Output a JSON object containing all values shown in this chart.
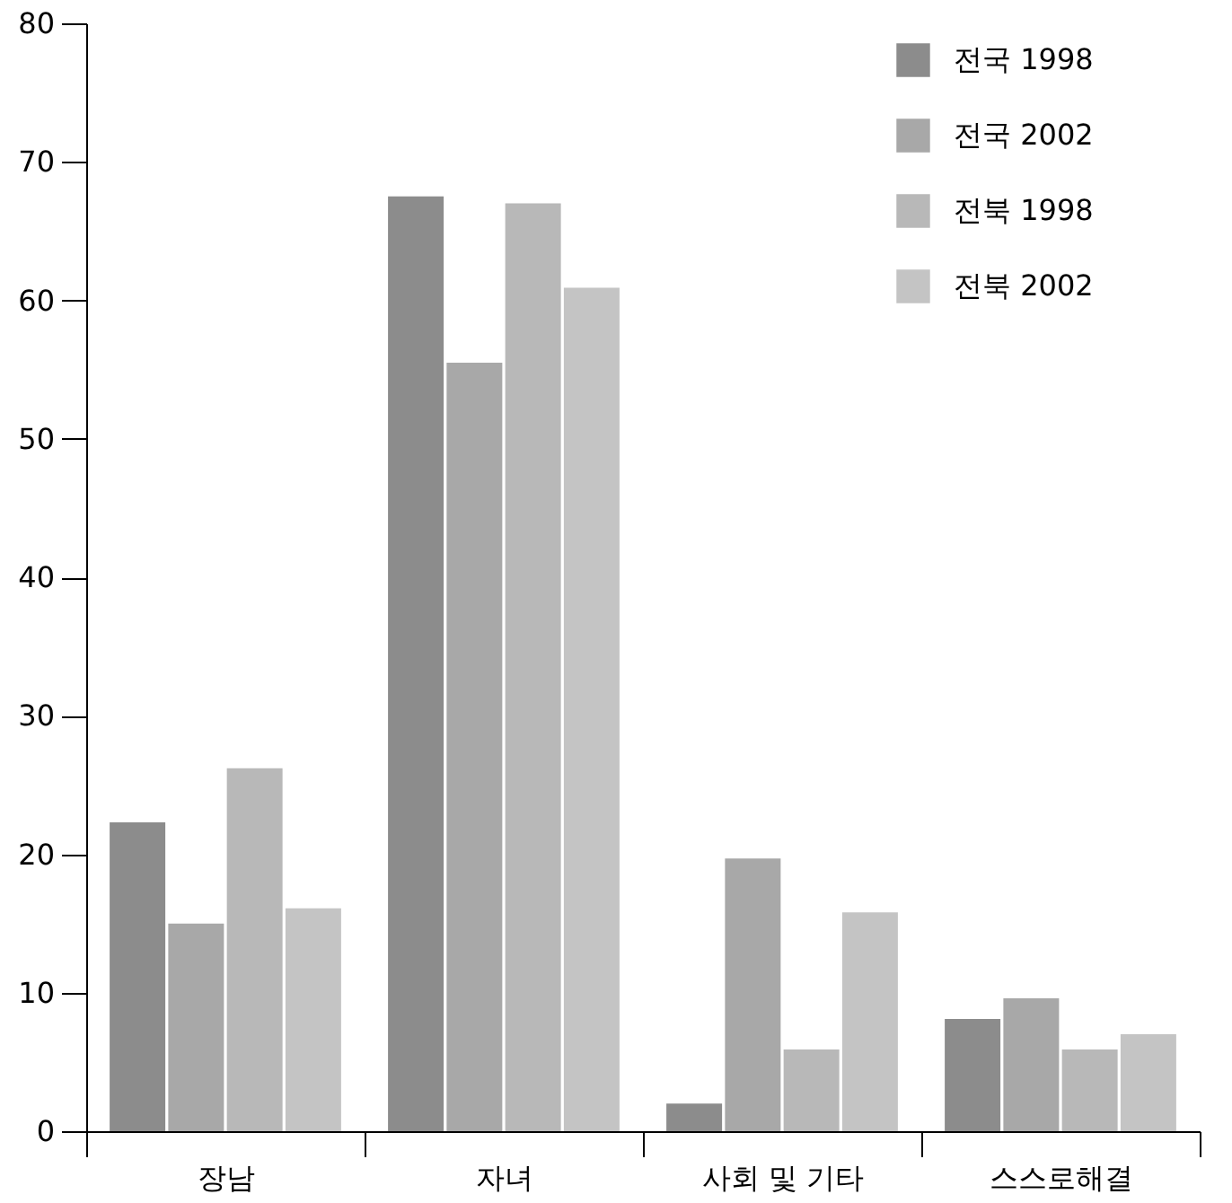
{
  "chart_data": {
    "type": "bar",
    "categories": [
      "장남",
      "자녀",
      "사회 및 기타",
      "스스로해결"
    ],
    "series": [
      {
        "name": "전국 1998",
        "color": "#8c8c8c",
        "values": [
          22.3,
          67.5,
          2.0,
          8.1
        ]
      },
      {
        "name": "전국 2002",
        "color": "#a8a8a8",
        "values": [
          15.0,
          55.5,
          19.7,
          9.6
        ]
      },
      {
        "name": "전북 1998",
        "color": "#b8b8b8",
        "values": [
          26.2,
          67.0,
          5.9,
          5.9
        ]
      },
      {
        "name": "전북 2002",
        "color": "#c4c4c4",
        "values": [
          16.1,
          60.9,
          15.8,
          7.0
        ]
      }
    ],
    "ylim": [
      0,
      80
    ],
    "yticks": [
      0,
      10,
      20,
      30,
      40,
      50,
      60,
      70,
      80
    ],
    "grid": false,
    "legend": "top right"
  }
}
